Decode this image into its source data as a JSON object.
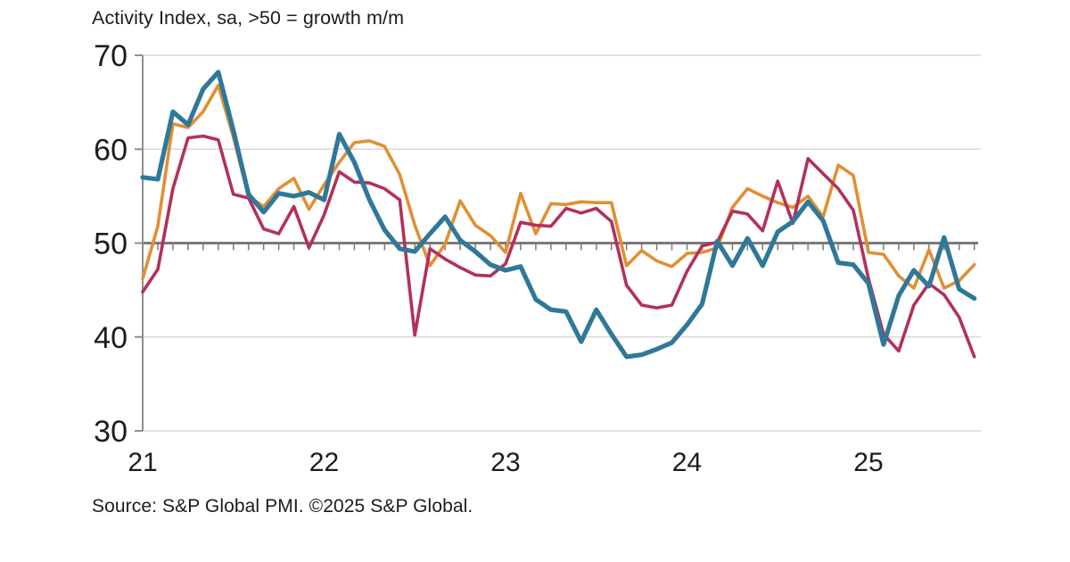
{
  "header": {
    "title": "Activity Index, sa, >50 = growth m/m"
  },
  "footer": {
    "source": "Source: S&P Global PMI. ©2025 S&P Global."
  },
  "chart_data": {
    "type": "line",
    "title": "Activity Index, sa, >50 = growth m/m",
    "x_unit": "month",
    "x_range_note": "monthly points, Jan 2021 - Aug 2025",
    "x_tick_labels": [
      "21",
      "22",
      "23",
      "24",
      "25"
    ],
    "months_per_x_tick": 12,
    "ylim": [
      30,
      70
    ],
    "yticks": [
      70,
      60,
      50,
      40,
      30
    ],
    "gridline_yvalues": [
      70,
      60,
      40,
      30
    ],
    "reference_line": 50,
    "legend": "none",
    "grid": "horizontal",
    "axis_color": "#8f8f8f",
    "gridline_color": "#d9d9d9",
    "reference_line_color": "#7a7a7a",
    "text_color": "#1c1c1c",
    "series": [
      {
        "name": "orange-series",
        "color": "#E18F33",
        "stroke_width": 3.6,
        "values": [
          46.2,
          51.8,
          62.7,
          62.3,
          64.0,
          66.8,
          61.3,
          55.0,
          53.9,
          55.8,
          56.9,
          53.6,
          56.2,
          58.6,
          60.7,
          60.9,
          60.3,
          57.3,
          51.9,
          47.6,
          49.9,
          54.5,
          51.9,
          50.8,
          49.0,
          55.3,
          51.0,
          54.2,
          54.1,
          54.4,
          54.3,
          54.3,
          47.6,
          49.2,
          48.1,
          47.5,
          48.9,
          49.0,
          49.5,
          53.8,
          55.8,
          55.0,
          54.3,
          53.8,
          55.0,
          52.8,
          58.3,
          57.2,
          49.0,
          48.8,
          46.5,
          45.2,
          49.3,
          45.2,
          46.0,
          47.7
        ]
      },
      {
        "name": "crimson-series",
        "color": "#B23159",
        "stroke_width": 3.6,
        "values": [
          44.8,
          47.2,
          55.8,
          61.2,
          61.4,
          61.0,
          55.2,
          54.8,
          51.5,
          51.0,
          53.9,
          49.5,
          53.0,
          57.6,
          56.5,
          56.4,
          55.8,
          54.6,
          40.2,
          49.4,
          48.3,
          47.4,
          46.6,
          46.5,
          47.8,
          52.2,
          51.9,
          51.8,
          53.7,
          53.2,
          53.7,
          52.3,
          45.5,
          43.4,
          43.1,
          43.4,
          47.0,
          49.7,
          50.1,
          53.4,
          53.1,
          51.3,
          56.6,
          52.1,
          59.0,
          57.4,
          55.8,
          53.5,
          46.2,
          40.3,
          38.5,
          43.4,
          45.7,
          44.5,
          42.1,
          37.9
        ]
      },
      {
        "name": "teal-series",
        "color": "#30789A",
        "stroke_width": 5.2,
        "values": [
          57.0,
          56.8,
          64.0,
          62.6,
          66.4,
          68.2,
          62.0,
          55.2,
          53.3,
          55.3,
          55.0,
          55.4,
          54.6,
          61.6,
          58.6,
          54.6,
          51.4,
          49.4,
          49.1,
          51.0,
          52.8,
          50.3,
          49.1,
          47.7,
          47.1,
          47.5,
          44.0,
          42.9,
          42.7,
          39.5,
          42.9,
          40.3,
          37.9,
          38.1,
          38.7,
          39.4,
          41.3,
          43.5,
          50.2,
          47.6,
          50.5,
          47.6,
          51.2,
          52.3,
          54.4,
          52.4,
          47.9,
          47.7,
          45.7,
          39.2,
          44.4,
          47.1,
          45.4,
          50.6,
          45.1,
          44.1
        ]
      }
    ]
  }
}
